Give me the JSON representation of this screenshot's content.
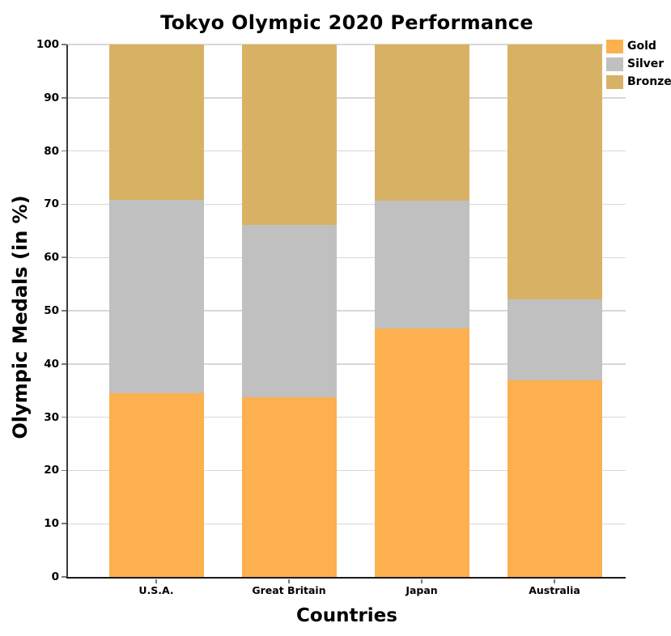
{
  "chart_data": {
    "type": "bar",
    "stacked": true,
    "title": "Tokyo Olympic 2020 Performance",
    "xlabel": "Countries",
    "ylabel": "Olympic Medals (in %)",
    "ylim": [
      0,
      100
    ],
    "yticks": [
      0,
      10,
      20,
      30,
      40,
      50,
      60,
      70,
      80,
      90,
      100
    ],
    "grid": true,
    "legend_position": "upper right",
    "categories": [
      "U.S.A.",
      "Great Britain",
      "Japan",
      "Australia"
    ],
    "series": [
      {
        "name": "Gold",
        "color": "#FCB04E",
        "values": [
          34.5,
          33.8,
          46.6,
          37.0
        ]
      },
      {
        "name": "Silver",
        "color": "#C0C0C0",
        "values": [
          36.3,
          32.3,
          24.1,
          15.2
        ]
      },
      {
        "name": "Bronze",
        "color": "#D8B264",
        "values": [
          29.2,
          33.9,
          29.3,
          47.8
        ]
      }
    ]
  },
  "colors": {
    "background": "#FFFFFF",
    "gridline": "#D8D8D8",
    "axis_spine": "#3A3A3A",
    "text": "#000000"
  }
}
